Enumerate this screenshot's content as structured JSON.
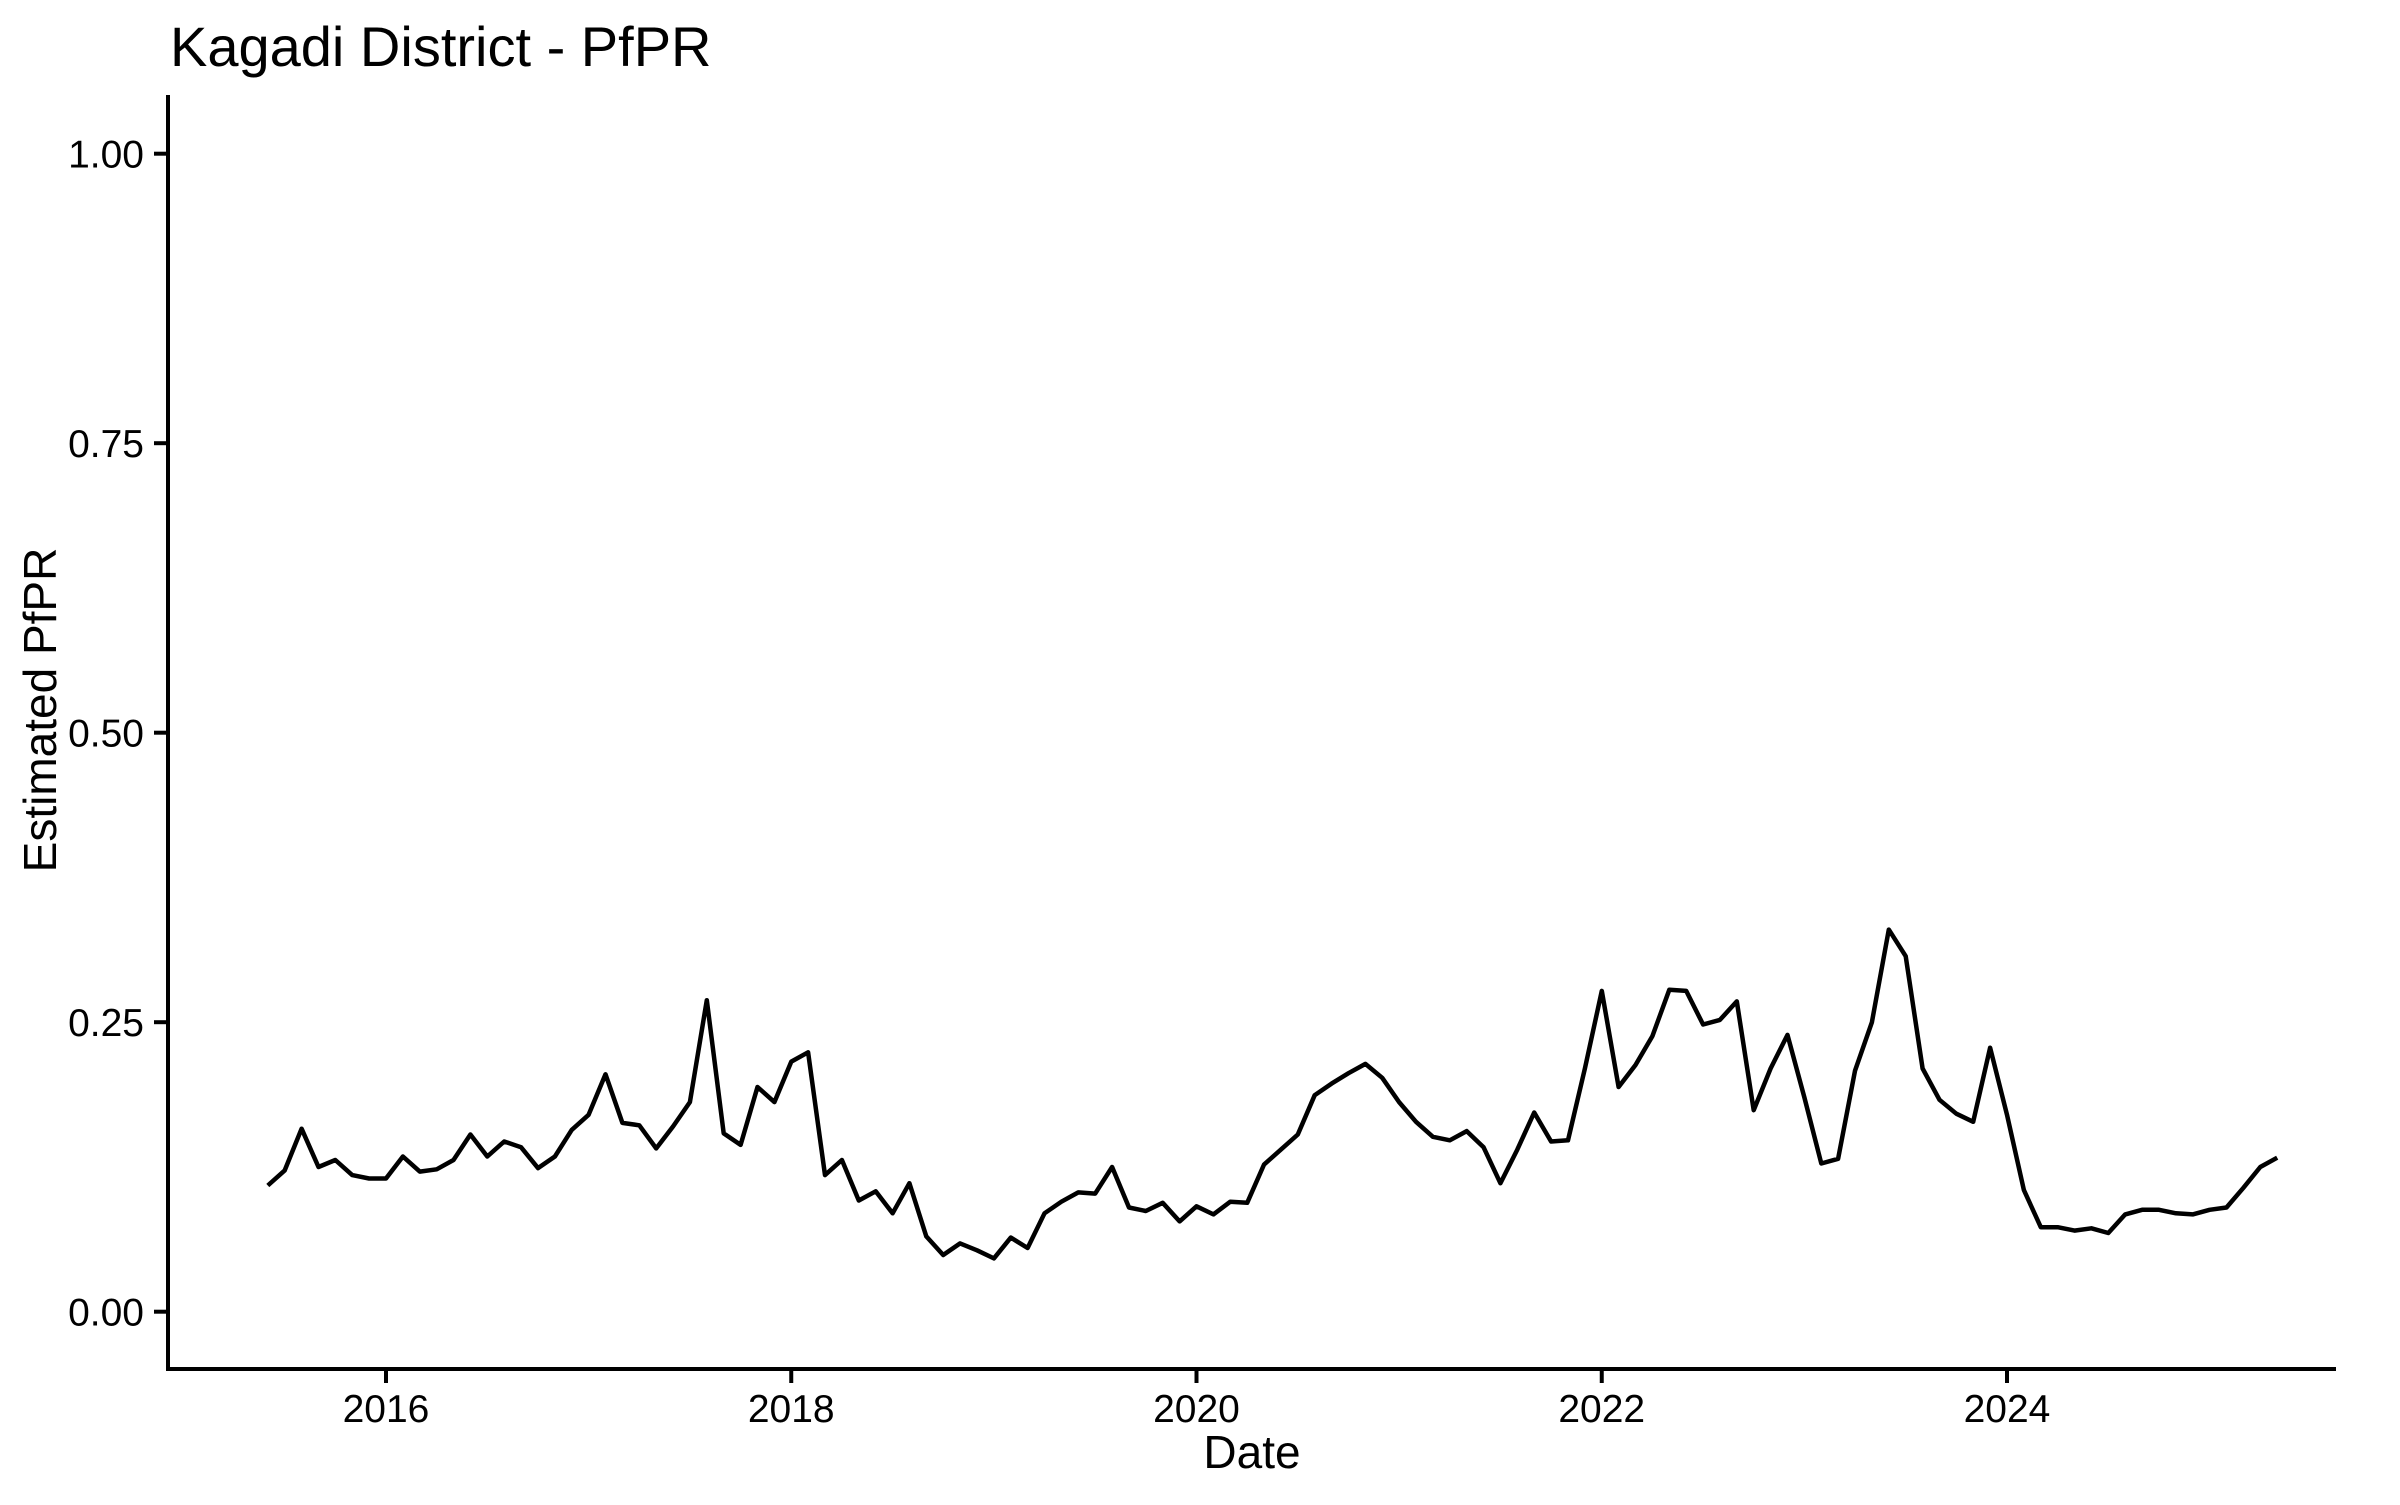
{
  "title": "Kagadi District - PfPR",
  "axes": {
    "x_label": "Date",
    "y_label": "Estimated PfPR",
    "x_ticks": [
      {
        "label": "2016",
        "year": 2016
      },
      {
        "label": "2018",
        "year": 2018
      },
      {
        "label": "2020",
        "year": 2020
      },
      {
        "label": "2022",
        "year": 2022
      },
      {
        "label": "2024",
        "year": 2024
      }
    ],
    "y_ticks": [
      {
        "label": "0.00",
        "value": 0.0
      },
      {
        "label": "0.25",
        "value": 0.25
      },
      {
        "label": "0.50",
        "value": 0.5
      },
      {
        "label": "0.75",
        "value": 0.75
      },
      {
        "label": "1.00",
        "value": 1.0
      }
    ]
  },
  "chart_data": {
    "type": "line",
    "title": "Kagadi District - PfPR",
    "xlabel": "Date",
    "ylabel": "Estimated PfPR",
    "series_name": "Estimated PfPR",
    "grid": false,
    "legend": false,
    "line_color": "#000000",
    "background_color": "#FFFFFF",
    "ylim": [
      0.0,
      1.0
    ],
    "xlim": [
      "2015-06",
      "2025-05"
    ],
    "x": [
      "2015-06",
      "2015-07",
      "2015-08",
      "2015-09",
      "2015-10",
      "2015-11",
      "2015-12",
      "2016-01",
      "2016-02",
      "2016-03",
      "2016-04",
      "2016-05",
      "2016-06",
      "2016-07",
      "2016-08",
      "2016-09",
      "2016-10",
      "2016-11",
      "2016-12",
      "2017-01",
      "2017-02",
      "2017-03",
      "2017-04",
      "2017-05",
      "2017-06",
      "2017-07",
      "2017-08",
      "2017-09",
      "2017-10",
      "2017-11",
      "2017-12",
      "2018-01",
      "2018-02",
      "2018-03",
      "2018-04",
      "2018-05",
      "2018-06",
      "2018-07",
      "2018-08",
      "2018-09",
      "2018-10",
      "2018-11",
      "2018-12",
      "2019-01",
      "2019-02",
      "2019-03",
      "2019-04",
      "2019-05",
      "2019-06",
      "2019-07",
      "2019-08",
      "2019-09",
      "2019-10",
      "2019-11",
      "2019-12",
      "2020-01",
      "2020-02",
      "2020-03",
      "2020-04",
      "2020-05",
      "2020-06",
      "2020-07",
      "2020-08",
      "2020-09",
      "2020-10",
      "2020-11",
      "2020-12",
      "2021-01",
      "2021-02",
      "2021-03",
      "2021-04",
      "2021-05",
      "2021-06",
      "2021-07",
      "2021-08",
      "2021-09",
      "2021-10",
      "2021-11",
      "2021-12",
      "2022-01",
      "2022-02",
      "2022-03",
      "2022-04",
      "2022-05",
      "2022-06",
      "2022-07",
      "2022-08",
      "2022-09",
      "2022-10",
      "2022-11",
      "2022-12",
      "2023-01",
      "2023-02",
      "2023-03",
      "2023-04",
      "2023-05",
      "2023-06",
      "2023-07",
      "2023-08",
      "2023-09",
      "2023-10",
      "2023-11",
      "2023-12",
      "2024-01",
      "2024-02",
      "2024-03",
      "2024-04",
      "2024-05",
      "2024-06",
      "2024-07",
      "2024-08",
      "2024-09",
      "2024-10",
      "2024-11",
      "2024-12",
      "2025-01",
      "2025-02",
      "2025-03",
      "2025-04",
      "2025-05"
    ],
    "values": [
      0.109,
      0.122,
      0.158,
      0.125,
      0.131,
      0.118,
      0.115,
      0.115,
      0.134,
      0.121,
      0.123,
      0.131,
      0.153,
      0.134,
      0.147,
      0.142,
      0.124,
      0.134,
      0.157,
      0.17,
      0.205,
      0.163,
      0.161,
      0.141,
      0.16,
      0.181,
      0.269,
      0.154,
      0.144,
      0.194,
      0.181,
      0.216,
      0.224,
      0.118,
      0.131,
      0.096,
      0.104,
      0.085,
      0.111,
      0.065,
      0.049,
      0.059,
      0.053,
      0.046,
      0.064,
      0.055,
      0.085,
      0.095,
      0.103,
      0.102,
      0.125,
      0.09,
      0.087,
      0.094,
      0.078,
      0.091,
      0.084,
      0.095,
      0.094,
      0.127,
      0.14,
      0.153,
      0.187,
      0.197,
      0.206,
      0.214,
      0.202,
      0.181,
      0.164,
      0.151,
      0.148,
      0.156,
      0.142,
      0.111,
      0.14,
      0.172,
      0.147,
      0.148,
      0.21,
      0.277,
      0.194,
      0.213,
      0.238,
      0.278,
      0.277,
      0.248,
      0.252,
      0.268,
      0.174,
      0.21,
      0.239,
      0.185,
      0.128,
      0.132,
      0.208,
      0.25,
      0.33,
      0.307,
      0.21,
      0.183,
      0.171,
      0.164,
      0.228,
      0.17,
      0.105,
      0.073,
      0.073,
      0.07,
      0.072,
      0.068,
      0.084,
      0.088,
      0.088,
      0.085,
      0.084,
      0.088,
      0.09,
      0.107,
      0.125,
      0.133
    ]
  }
}
